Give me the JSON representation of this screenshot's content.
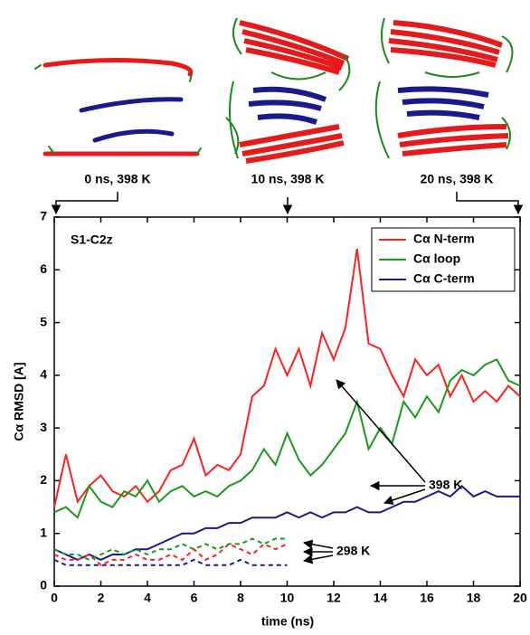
{
  "chart_data": {
    "type": "line",
    "ylabel": "Cα RMSD [A]",
    "xlabel": "time (ns)",
    "panel_label": "S1-C2z",
    "snapshot_labels": [
      "0 ns, 398 K",
      "10 ns, 398 K",
      "20 ns, 398 K"
    ],
    "annotations": [
      "398 K",
      "298 K"
    ],
    "xlim": [
      0,
      20
    ],
    "xticks": [
      0,
      2,
      4,
      6,
      8,
      10,
      12,
      14,
      16,
      18,
      20
    ],
    "ylim": [
      0,
      7
    ],
    "yticks": [
      0,
      1,
      2,
      3,
      4,
      5,
      6,
      7
    ],
    "legend": "upper right",
    "x": [
      0,
      0.5,
      1,
      1.5,
      2,
      2.5,
      3,
      3.5,
      4,
      4.5,
      5,
      5.5,
      6,
      6.5,
      7,
      7.5,
      8,
      8.5,
      9,
      9.5,
      10,
      10.5,
      11,
      11.5,
      12,
      12.5,
      13,
      13.5,
      14,
      14.5,
      15,
      15.5,
      16,
      16.5,
      17,
      17.5,
      18,
      18.5,
      19,
      19.5,
      20
    ],
    "series": [
      {
        "name": "Cα N-term",
        "color": "#ff2020",
        "dash": false,
        "values": [
          1.5,
          2.5,
          1.6,
          1.9,
          2.1,
          1.8,
          1.7,
          1.9,
          1.6,
          1.8,
          2.2,
          2.3,
          2.8,
          2.1,
          2.3,
          2.2,
          2.5,
          3.6,
          3.8,
          4.5,
          4.0,
          4.5,
          3.8,
          4.8,
          4.3,
          4.9,
          6.4,
          4.6,
          4.5,
          4.0,
          3.6,
          4.3,
          4.0,
          4.2,
          3.6,
          4.0,
          3.5,
          3.7,
          3.5,
          3.8,
          3.6
        ]
      },
      {
        "name": "Cα loop",
        "color": "#1a9a1a",
        "dash": false,
        "values": [
          1.4,
          1.5,
          1.3,
          1.9,
          1.6,
          1.5,
          1.8,
          1.7,
          2.0,
          1.6,
          1.8,
          1.9,
          1.7,
          1.8,
          1.7,
          1.9,
          2.0,
          2.2,
          2.6,
          2.3,
          2.9,
          2.4,
          2.1,
          2.3,
          2.6,
          2.9,
          3.5,
          2.6,
          3.0,
          2.7,
          3.5,
          3.2,
          3.6,
          3.3,
          3.9,
          4.1,
          4.0,
          4.2,
          4.3,
          3.9,
          3.8
        ]
      },
      {
        "name": "Cα C-term",
        "color": "#1a1a8c",
        "dash": false,
        "values": [
          0.7,
          0.6,
          0.5,
          0.6,
          0.5,
          0.6,
          0.6,
          0.7,
          0.7,
          0.8,
          0.9,
          1.0,
          1.0,
          1.1,
          1.1,
          1.2,
          1.2,
          1.3,
          1.3,
          1.3,
          1.4,
          1.3,
          1.4,
          1.3,
          1.4,
          1.4,
          1.5,
          1.4,
          1.4,
          1.5,
          1.6,
          1.6,
          1.7,
          1.8,
          1.7,
          1.9,
          1.7,
          1.8,
          1.7,
          1.7,
          1.7
        ]
      },
      {
        "color": "#ff2020",
        "dash": true,
        "values": [
          0.6,
          0.5,
          0.5,
          0.6,
          0.4,
          0.5,
          0.5,
          0.6,
          0.5,
          0.5,
          0.6,
          0.5,
          0.7,
          0.5,
          0.6,
          0.8,
          0.7,
          0.6,
          0.8,
          0.7,
          0.8,
          null,
          null,
          null,
          null,
          null,
          null,
          null,
          null,
          null,
          null,
          null,
          null,
          null,
          null,
          null,
          null,
          null,
          null,
          null,
          null
        ]
      },
      {
        "color": "#1a9a1a",
        "dash": true,
        "values": [
          0.7,
          0.6,
          0.6,
          0.5,
          0.6,
          0.7,
          0.6,
          0.7,
          0.6,
          0.7,
          0.7,
          0.8,
          0.7,
          0.8,
          0.7,
          0.8,
          0.8,
          0.9,
          0.8,
          0.9,
          0.9,
          null,
          null,
          null,
          null,
          null,
          null,
          null,
          null,
          null,
          null,
          null,
          null,
          null,
          null,
          null,
          null,
          null,
          null,
          null,
          null
        ]
      },
      {
        "color": "#1a1a8c",
        "dash": true,
        "values": [
          0.5,
          0.4,
          0.4,
          0.4,
          0.4,
          0.4,
          0.4,
          0.4,
          0.4,
          0.4,
          0.4,
          0.4,
          0.5,
          0.4,
          0.4,
          0.4,
          0.5,
          0.4,
          0.4,
          0.4,
          0.4,
          null,
          null,
          null,
          null,
          null,
          null,
          null,
          null,
          null,
          null,
          null,
          null,
          null,
          null,
          null,
          null,
          null,
          null,
          null,
          null
        ]
      }
    ]
  }
}
